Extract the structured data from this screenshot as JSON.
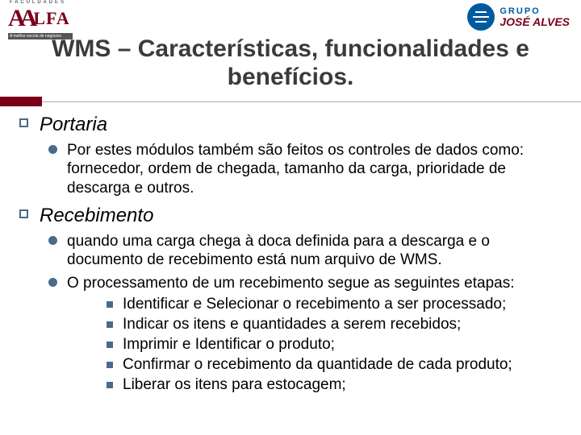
{
  "colors": {
    "accent_red": "#7a001a",
    "accent_blue": "#005a9e",
    "bullet": "#4a6a88",
    "title_gray": "#3b3b3b",
    "divider": "#b0b0b0",
    "background": "#ffffff"
  },
  "typography": {
    "title_fontsize": 30,
    "section_fontsize": 24,
    "body_fontsize": 19
  },
  "logo_left": {
    "brand_letters": "AA",
    "brand_rest": "LFA",
    "overline": "FACULDADES",
    "tagline": "A melhor escola de negócios"
  },
  "logo_right": {
    "line1": "GRUPO",
    "line2": "JOSÉ ALVES"
  },
  "title": "WMS – Características, funcionalidades e benefícios.",
  "sections": {
    "portaria": {
      "heading": "Portaria",
      "items": {
        "i0": "Por estes módulos também são feitos os controles de dados como: fornecedor, ordem de chegada, tamanho da carga, prioridade de descarga e outros."
      }
    },
    "recebimento": {
      "heading": "Recebimento",
      "items": {
        "i0": "quando uma carga chega à doca definida para a descarga e o documento de recebimento está num arquivo de WMS.",
        "i1": "O processamento de um recebimento segue as seguintes etapas:"
      },
      "steps": {
        "s0": "Identificar e Selecionar o recebimento a ser processado;",
        "s1": "Indicar os itens e quantidades a serem recebidos;",
        "s2": "Imprimir e Identificar o produto;",
        "s3": "Confirmar o recebimento da quantidade de cada produto;",
        "s4": "Liberar os itens para estocagem;"
      }
    }
  }
}
